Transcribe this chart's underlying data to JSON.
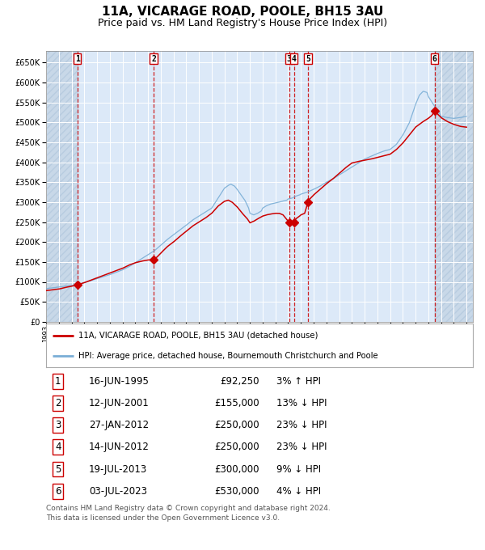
{
  "title": "11A, VICARAGE ROAD, POOLE, BH15 3AU",
  "subtitle": "Price paid vs. HM Land Registry's House Price Index (HPI)",
  "footer_line1": "Contains HM Land Registry data © Crown copyright and database right 2024.",
  "footer_line2": "This data is licensed under the Open Government Licence v3.0.",
  "legend_red": "11A, VICARAGE ROAD, POOLE, BH15 3AU (detached house)",
  "legend_blue": "HPI: Average price, detached house, Bournemouth Christchurch and Poole",
  "transactions": [
    {
      "num": 1,
      "price": 92250,
      "hpi_pct": "3% ↑ HPI",
      "x_year": 1995.46
    },
    {
      "num": 2,
      "price": 155000,
      "hpi_pct": "13% ↓ HPI",
      "x_year": 2001.45
    },
    {
      "num": 3,
      "price": 250000,
      "hpi_pct": "23% ↓ HPI",
      "x_year": 2012.07
    },
    {
      "num": 4,
      "price": 250000,
      "hpi_pct": "23% ↓ HPI",
      "x_year": 2012.45
    },
    {
      "num": 5,
      "price": 300000,
      "hpi_pct": "9% ↓ HPI",
      "x_year": 2013.55
    },
    {
      "num": 6,
      "price": 530000,
      "hpi_pct": "4% ↓ HPI",
      "x_year": 2023.5
    }
  ],
  "transaction_dates_display": [
    "16-JUN-1995",
    "12-JUN-2001",
    "27-JAN-2012",
    "14-JUN-2012",
    "19-JUL-2013",
    "03-JUL-2023"
  ],
  "transaction_prices_display": [
    "£92,250",
    "£155,000",
    "£250,000",
    "£250,000",
    "£300,000",
    "£530,000"
  ],
  "ylim": [
    0,
    680000
  ],
  "yticks": [
    0,
    50000,
    100000,
    150000,
    200000,
    250000,
    300000,
    350000,
    400000,
    450000,
    500000,
    550000,
    600000,
    650000
  ],
  "xlim_start": 1993.0,
  "xlim_end": 2026.5,
  "xtick_years": [
    1993,
    1994,
    1995,
    1996,
    1997,
    1998,
    1999,
    2000,
    2001,
    2002,
    2003,
    2004,
    2005,
    2006,
    2007,
    2008,
    2009,
    2010,
    2011,
    2012,
    2013,
    2014,
    2015,
    2016,
    2017,
    2018,
    2019,
    2020,
    2021,
    2022,
    2023,
    2024,
    2025,
    2026
  ],
  "background_color": "#dce9f8",
  "grid_color": "#ffffff",
  "red_color": "#cc0000",
  "blue_color": "#7aaed6",
  "hatch_color": "#c8d8e8",
  "title_fontsize": 11,
  "subtitle_fontsize": 9,
  "table_fontsize": 8.5,
  "footer_fontsize": 6.5
}
